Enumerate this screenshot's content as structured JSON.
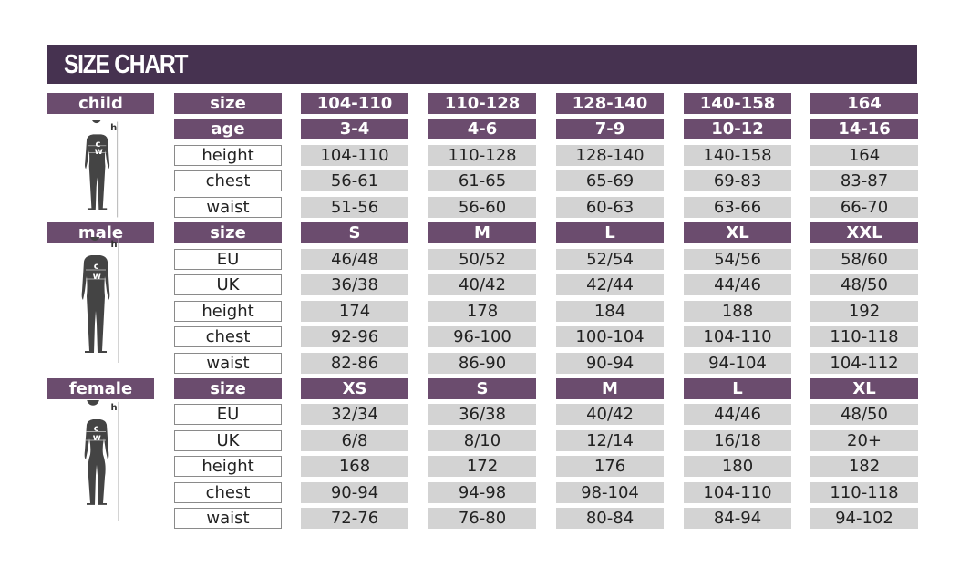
{
  "title": "SIZE CHART",
  "figure_labels": {
    "height": "h",
    "chest": "c",
    "waist": "w"
  },
  "colors": {
    "title_bar": "#463250",
    "header_cell": "#6b4c6e",
    "value_cell": "#d3d3d3",
    "figure": "#444444"
  },
  "sections": [
    {
      "label": "child",
      "figure": "child-silhouette-icon",
      "rows": [
        {
          "label": "size",
          "header": true,
          "values": [
            "104-110",
            "110-128",
            "128-140",
            "140-158",
            "164"
          ]
        },
        {
          "label": "age",
          "header": true,
          "values": [
            "3-4",
            "4-6",
            "7-9",
            "10-12",
            "14-16"
          ]
        },
        {
          "label": "height",
          "header": false,
          "values": [
            "104-110",
            "110-128",
            "128-140",
            "140-158",
            "164"
          ]
        },
        {
          "label": "chest",
          "header": false,
          "values": [
            "56-61",
            "61-65",
            "65-69",
            "69-83",
            "83-87"
          ]
        },
        {
          "label": "waist",
          "header": false,
          "values": [
            "51-56",
            "56-60",
            "60-63",
            "63-66",
            "66-70"
          ]
        }
      ]
    },
    {
      "label": "male",
      "figure": "male-silhouette-icon",
      "rows": [
        {
          "label": "size",
          "header": true,
          "values": [
            "S",
            "M",
            "L",
            "XL",
            "XXL"
          ]
        },
        {
          "label": "EU",
          "header": false,
          "values": [
            "46/48",
            "50/52",
            "52/54",
            "54/56",
            "58/60"
          ]
        },
        {
          "label": "UK",
          "header": false,
          "values": [
            "36/38",
            "40/42",
            "42/44",
            "44/46",
            "48/50"
          ]
        },
        {
          "label": "height",
          "header": false,
          "values": [
            "174",
            "178",
            "184",
            "188",
            "192"
          ]
        },
        {
          "label": "chest",
          "header": false,
          "values": [
            "92-96",
            "96-100",
            "100-104",
            "104-110",
            "110-118"
          ]
        },
        {
          "label": "waist",
          "header": false,
          "values": [
            "82-86",
            "86-90",
            "90-94",
            "94-104",
            "104-112"
          ]
        }
      ]
    },
    {
      "label": "female",
      "figure": "female-silhouette-icon",
      "rows": [
        {
          "label": "size",
          "header": true,
          "values": [
            "XS",
            "S",
            "M",
            "L",
            "XL"
          ]
        },
        {
          "label": "EU",
          "header": false,
          "values": [
            "32/34",
            "36/38",
            "40/42",
            "44/46",
            "48/50"
          ]
        },
        {
          "label": "UK",
          "header": false,
          "values": [
            "6/8",
            "8/10",
            "12/14",
            "16/18",
            "20+"
          ]
        },
        {
          "label": "height",
          "header": false,
          "values": [
            "168",
            "172",
            "176",
            "180",
            "182"
          ]
        },
        {
          "label": "chest",
          "header": false,
          "values": [
            "90-94",
            "94-98",
            "98-104",
            "104-110",
            "110-118"
          ]
        },
        {
          "label": "waist",
          "header": false,
          "values": [
            "72-76",
            "76-80",
            "80-84",
            "84-94",
            "94-102"
          ]
        }
      ]
    }
  ]
}
